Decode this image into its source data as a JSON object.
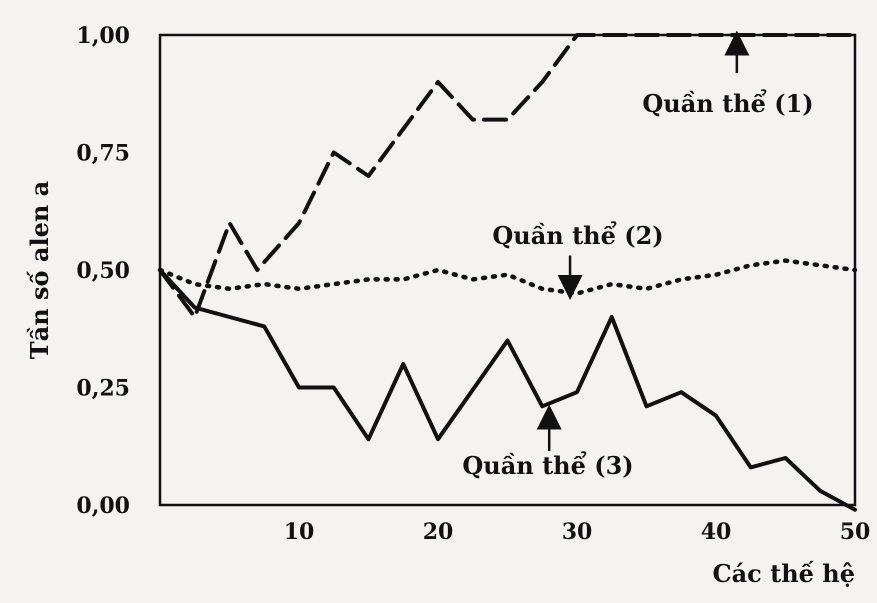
{
  "chart_data": {
    "type": "line",
    "xlabel": "Các thế hệ",
    "ylabel": "Tần số alen a",
    "xlim": [
      0,
      50
    ],
    "ylim": [
      0,
      1
    ],
    "x_ticks": [
      10,
      20,
      30,
      40,
      50
    ],
    "y_ticks": [
      "0,00",
      "0,25",
      "0,50",
      "0,75",
      "1,00"
    ],
    "y_tick_values": [
      0,
      0.25,
      0.5,
      0.75,
      1
    ],
    "grid": false,
    "series": [
      {
        "name": "Quần thể (1)",
        "style": "dashed",
        "x": [
          0,
          2.5,
          5,
          7,
          10,
          12.5,
          15,
          17.5,
          20,
          22.5,
          25,
          27.5,
          30,
          32.5,
          35,
          40,
          45,
          50
        ],
        "y": [
          0.5,
          0.4,
          0.6,
          0.5,
          0.6,
          0.75,
          0.7,
          0.8,
          0.9,
          0.82,
          0.82,
          0.9,
          1.0,
          1.0,
          1.0,
          1.0,
          1.0,
          1.0
        ]
      },
      {
        "name": "Quần thể (2)",
        "style": "dotted",
        "x": [
          0,
          2.5,
          5,
          7.5,
          10,
          12.5,
          15,
          17.5,
          20,
          22.5,
          25,
          27.5,
          30,
          32.5,
          35,
          37.5,
          40,
          42.5,
          45,
          47.5,
          50
        ],
        "y": [
          0.5,
          0.47,
          0.46,
          0.47,
          0.46,
          0.47,
          0.48,
          0.48,
          0.5,
          0.48,
          0.49,
          0.46,
          0.45,
          0.47,
          0.46,
          0.48,
          0.49,
          0.51,
          0.52,
          0.51,
          0.5
        ]
      },
      {
        "name": "Quần thể (3)",
        "style": "solid",
        "x": [
          0,
          2.5,
          5,
          7.5,
          10,
          12.5,
          15,
          17.5,
          20,
          25,
          27.5,
          30,
          32.5,
          35,
          37.5,
          40,
          42.5,
          45,
          47.5,
          50
        ],
        "y": [
          0.5,
          0.42,
          0.4,
          0.38,
          0.25,
          0.25,
          0.14,
          0.3,
          0.14,
          0.35,
          0.21,
          0.24,
          0.4,
          0.21,
          0.24,
          0.19,
          0.08,
          0.1,
          0.03,
          -0.01
        ]
      }
    ],
    "annotations": [
      {
        "text": "Quần thể (1)",
        "series": 0,
        "arrow_x": 41.5,
        "arrow_y": 1.0,
        "direction": "up"
      },
      {
        "text": "Quần thể (2)",
        "series": 1,
        "arrow_x": 29.5,
        "arrow_y": 0.45,
        "direction": "down"
      },
      {
        "text": "Quần thể (3)",
        "series": 2,
        "arrow_x": 28,
        "arrow_y": 0.2,
        "direction": "up"
      }
    ]
  }
}
